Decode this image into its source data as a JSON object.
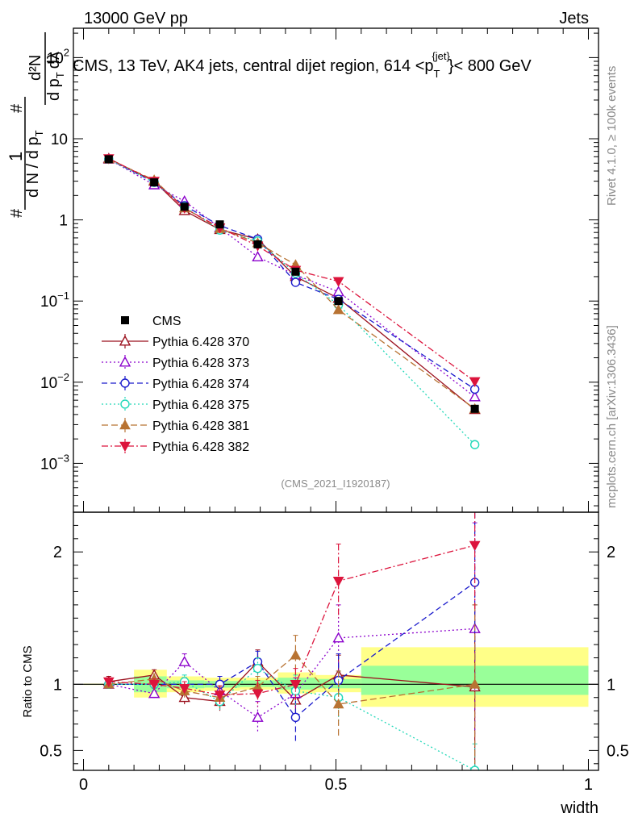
{
  "header": {
    "left": "13000 GeV pp",
    "right": "Jets",
    "title": "CMS, 13 TeV, AK4 jets, central dijet region, 614 <p",
    "title_sub": "T",
    "title_sup": "{jet}",
    "title_end": "}< 800 GeV"
  },
  "side": {
    "rivet": "Rivet 4.1.0, ≥ 100k events",
    "mcplots": "mcplots.cern.ch [arXiv:1306.3436]"
  },
  "watermark": "(CMS_2021_I1920187)",
  "ylabel_top": {
    "num": "1",
    "den": "d N / d p",
    "sub": "T",
    "hash": "#",
    "dnum": "d²N",
    "dden": "d p",
    "dsub": "T",
    "dl": "dλ"
  },
  "ylabel_bottom": "Ratio to CMS",
  "xlabel": "width",
  "chart_data": {
    "type": "line",
    "x": [
      0.05,
      0.14,
      0.2,
      0.27,
      0.345,
      0.42,
      0.505,
      0.775
    ],
    "xlim": [
      -0.02,
      1.02
    ],
    "top": {
      "yscale": "log",
      "ylim": [
        0.00025,
        230
      ],
      "yticks": [
        {
          "v": 0.001,
          "base": "10",
          "exp": "−3"
        },
        {
          "v": 0.01,
          "base": "10",
          "exp": "−2"
        },
        {
          "v": 0.1,
          "base": "10",
          "exp": "−1"
        },
        {
          "v": 1,
          "base": "1",
          "exp": ""
        },
        {
          "v": 10,
          "base": "10",
          "exp": ""
        },
        {
          "v": 100,
          "base": "10",
          "exp": "2"
        }
      ]
    },
    "bottom": {
      "ylim": [
        0.35,
        2.3
      ],
      "yticks": [
        {
          "v": 0.5,
          "label": "0.5"
        },
        {
          "v": 1,
          "label": "1"
        },
        {
          "v": 2,
          "label": "2"
        }
      ],
      "bands": [
        {
          "x0": 0.0,
          "x1": 0.1,
          "y0": 0.995,
          "y1": 1.005,
          "inner0": 0.998,
          "inner1": 1.002
        },
        {
          "x0": 0.1,
          "x1": 0.165,
          "y0": 0.9,
          "y1": 1.11,
          "inner0": 0.94,
          "inner1": 1.06
        },
        {
          "x0": 0.165,
          "x1": 0.24,
          "y0": 0.94,
          "y1": 1.06,
          "inner0": 0.97,
          "inner1": 1.03
        },
        {
          "x0": 0.24,
          "x1": 0.31,
          "y0": 0.95,
          "y1": 1.05,
          "inner0": 0.975,
          "inner1": 1.025
        },
        {
          "x0": 0.31,
          "x1": 0.385,
          "y0": 0.96,
          "y1": 1.05,
          "inner0": 0.98,
          "inner1": 1.03
        },
        {
          "x0": 0.385,
          "x1": 0.46,
          "y0": 0.93,
          "y1": 1.09,
          "inner0": 0.96,
          "inner1": 1.05
        },
        {
          "x0": 0.46,
          "x1": 0.55,
          "y0": 0.94,
          "y1": 1.07,
          "inner0": 0.97,
          "inner1": 1.04
        },
        {
          "x0": 0.55,
          "x1": 1.0,
          "y0": 0.83,
          "y1": 1.28,
          "inner0": 0.92,
          "inner1": 1.14
        }
      ],
      "xticks": [
        {
          "v": 0,
          "label": "0"
        },
        {
          "v": 0.5,
          "label": "0.5"
        },
        {
          "v": 1,
          "label": "1"
        }
      ]
    },
    "data": {
      "name": "CMS",
      "values": [
        5.6,
        2.9,
        1.45,
        0.88,
        0.5,
        0.23,
        0.1,
        0.0047
      ],
      "errors": [
        0.15,
        0.1,
        0.06,
        0.05,
        0.03,
        0.02,
        0.015,
        0.002
      ]
    },
    "series": [
      {
        "name": "Pythia 6.428 370",
        "color": "#9b111e",
        "marker": "triangle-up-open",
        "dash": "",
        "values": [
          5.7,
          3.0,
          1.3,
          0.76,
          0.58,
          0.2,
          0.108,
          0.0046
        ],
        "ratio": [
          1.02,
          1.07,
          0.9,
          0.87,
          1.17,
          0.88,
          1.07,
          0.98
        ],
        "rerr": [
          0.04,
          0.04,
          0.05,
          0.07,
          0.09,
          0.1,
          0.15,
          0.62
        ]
      },
      {
        "name": "Pythia 6.428 373",
        "color": "#8b00cc",
        "marker": "triangle-up-open",
        "dash": "2,3",
        "values": [
          5.6,
          2.7,
          1.7,
          0.8,
          0.35,
          0.21,
          0.13,
          0.0066
        ],
        "ratio": [
          1.0,
          0.93,
          1.17,
          0.95,
          0.75,
          0.93,
          1.35,
          1.42
        ],
        "rerr": [
          0.03,
          0.04,
          0.06,
          0.08,
          0.12,
          0.12,
          0.25,
          0.8
        ]
      },
      {
        "name": "Pythia 6.428 374",
        "color": "#1a1acc",
        "marker": "circle-open",
        "dash": "7,4",
        "values": [
          5.6,
          2.9,
          1.5,
          0.85,
          0.58,
          0.17,
          0.105,
          0.0082
        ],
        "ratio": [
          1.0,
          1.0,
          1.0,
          1.0,
          1.17,
          0.75,
          1.03,
          1.77
        ],
        "rerr": [
          0.03,
          0.04,
          0.05,
          0.06,
          0.08,
          0.2,
          0.2,
          0.6
        ]
      },
      {
        "name": "Pythia 6.428 375",
        "color": "#20d8b8",
        "marker": "circle-open",
        "dash": "2,3",
        "values": [
          5.6,
          2.9,
          1.45,
          0.75,
          0.55,
          0.22,
          0.09,
          0.0017
        ],
        "ratio": [
          1.0,
          1.0,
          1.02,
          0.87,
          1.12,
          0.95,
          0.9,
          0.35
        ],
        "rerr": [
          0.03,
          0.04,
          0.05,
          0.07,
          0.08,
          0.12,
          0.2,
          0.2
        ]
      },
      {
        "name": "Pythia 6.428 381",
        "color": "#b87333",
        "marker": "triangle-up-filled",
        "dash": "8,4",
        "values": [
          5.6,
          3.1,
          1.4,
          0.78,
          0.52,
          0.28,
          0.078,
          0.0047
        ],
        "ratio": [
          1.0,
          1.04,
          0.95,
          0.9,
          0.98,
          1.22,
          0.85,
          1.0
        ],
        "rerr": [
          0.03,
          0.04,
          0.05,
          0.08,
          0.08,
          0.15,
          0.25,
          0.6
        ]
      },
      {
        "name": "Pythia 6.428 382",
        "color": "#dc143c",
        "marker": "triangle-down-filled",
        "dash": "8,3,2,3",
        "values": [
          5.7,
          3.0,
          1.4,
          0.8,
          0.48,
          0.24,
          0.175,
          0.0102
        ],
        "ratio": [
          1.02,
          1.0,
          0.97,
          0.92,
          0.93,
          1.0,
          1.78,
          2.05
        ],
        "rerr": [
          0.03,
          0.04,
          0.05,
          0.07,
          0.1,
          0.12,
          0.28,
          0.5
        ]
      }
    ]
  }
}
